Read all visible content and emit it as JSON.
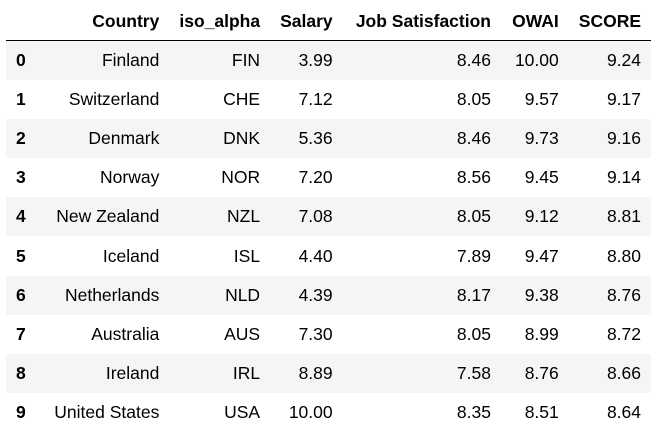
{
  "table": {
    "index_header": "",
    "columns": [
      "Country",
      "iso_alpha",
      "Salary",
      "Job Satisfaction",
      "OWAI",
      "SCORE"
    ],
    "rows": [
      {
        "index": "0",
        "cells": [
          "Finland",
          "FIN",
          "3.99",
          "8.46",
          "10.00",
          "9.24"
        ]
      },
      {
        "index": "1",
        "cells": [
          "Switzerland",
          "CHE",
          "7.12",
          "8.05",
          "9.57",
          "9.17"
        ]
      },
      {
        "index": "2",
        "cells": [
          "Denmark",
          "DNK",
          "5.36",
          "8.46",
          "9.73",
          "9.16"
        ]
      },
      {
        "index": "3",
        "cells": [
          "Norway",
          "NOR",
          "7.20",
          "8.56",
          "9.45",
          "9.14"
        ]
      },
      {
        "index": "4",
        "cells": [
          "New Zealand",
          "NZL",
          "7.08",
          "8.05",
          "9.12",
          "8.81"
        ]
      },
      {
        "index": "5",
        "cells": [
          "Iceland",
          "ISL",
          "4.40",
          "7.89",
          "9.47",
          "8.80"
        ]
      },
      {
        "index": "6",
        "cells": [
          "Netherlands",
          "NLD",
          "4.39",
          "8.17",
          "9.38",
          "8.76"
        ]
      },
      {
        "index": "7",
        "cells": [
          "Australia",
          "AUS",
          "7.30",
          "8.05",
          "8.99",
          "8.72"
        ]
      },
      {
        "index": "8",
        "cells": [
          "Ireland",
          "IRL",
          "8.89",
          "7.58",
          "8.76",
          "8.66"
        ]
      },
      {
        "index": "9",
        "cells": [
          "United States",
          "USA",
          "10.00",
          "8.35",
          "8.51",
          "8.64"
        ]
      }
    ]
  },
  "colors": {
    "striped_row_background": "#f5f5f5",
    "header_border": "#000000",
    "text": "#000000"
  }
}
